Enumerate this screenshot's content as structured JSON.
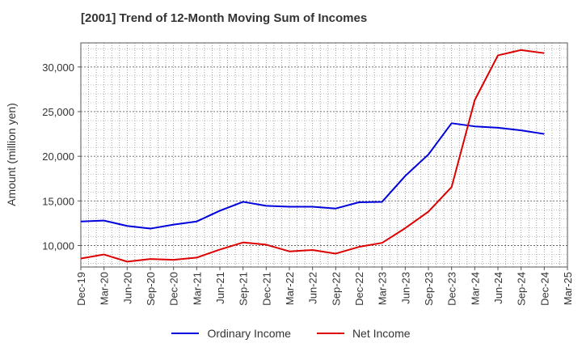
{
  "chart_data": {
    "type": "line",
    "title": "[2001]  Trend of 12-Month Moving Sum of Incomes",
    "xlabel": "",
    "ylabel": "Amount (million yen)",
    "categories": [
      "Dec-19",
      "Mar-20",
      "Jun-20",
      "Sep-20",
      "Dec-20",
      "Mar-21",
      "Jun-21",
      "Sep-21",
      "Dec-21",
      "Mar-22",
      "Jun-22",
      "Sep-22",
      "Dec-22",
      "Mar-23",
      "Jun-23",
      "Sep-23",
      "Dec-23",
      "Mar-24",
      "Jun-24",
      "Sep-24",
      "Dec-24",
      "Mar-25"
    ],
    "ylim": [
      7600,
      32700
    ],
    "yticks": [
      10000,
      15000,
      20000,
      25000,
      30000
    ],
    "ytick_labels": [
      "10,000",
      "15,000",
      "20,000",
      "25,000",
      "30,000"
    ],
    "grid": true,
    "legend_position": "bottom-center",
    "series": [
      {
        "name": "Ordinary Income",
        "color": "#0000dd",
        "values": [
          12700,
          12800,
          12200,
          11900,
          12350,
          12700,
          13900,
          14900,
          14450,
          14350,
          14350,
          14150,
          14850,
          14900,
          17800,
          20200,
          23700,
          23350,
          23200,
          22900,
          22500,
          null
        ]
      },
      {
        "name": "Net Income",
        "color": "#dd0000",
        "values": [
          8550,
          9000,
          8200,
          8500,
          8400,
          8650,
          9550,
          10350,
          10100,
          9350,
          9500,
          9100,
          9850,
          10300,
          11950,
          13800,
          16550,
          26300,
          31300,
          31900,
          31550,
          null
        ]
      }
    ]
  }
}
